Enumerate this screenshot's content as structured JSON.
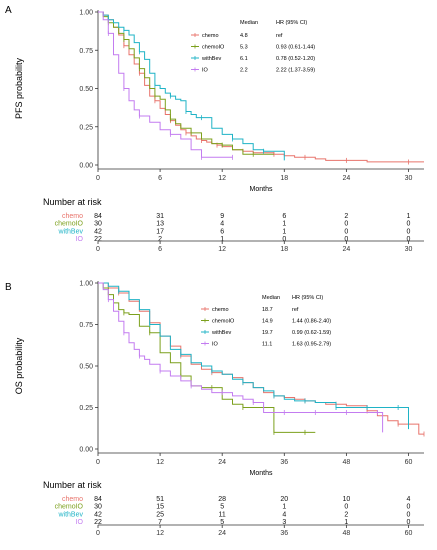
{
  "colors": {
    "chemo": "#e8736b",
    "chemoIO": "#7ca01d",
    "withBev": "#1fb3c6",
    "IO": "#c37cf0",
    "axis": "#333333"
  },
  "risk_title": "Number at risk",
  "chart_data": [
    {
      "type": "line",
      "panel_label": "A",
      "title": "",
      "xlabel": "Months",
      "ylabel": "PFS probability",
      "xlim": [
        0,
        31.5
      ],
      "ylim": [
        0,
        1
      ],
      "x_ticks": [
        0,
        6,
        12,
        18,
        24,
        30
      ],
      "y_ticks": [
        0.0,
        0.25,
        0.5,
        0.75,
        1.0
      ],
      "y_tick_labels": [
        "0.00",
        "0.25",
        "0.50",
        "0.75",
        "1.00"
      ],
      "legend": {
        "placement": "top-right",
        "header_median": "Median",
        "header_hr": "HR (95% CI)",
        "rows": [
          {
            "name": "chemo",
            "median": "4.8",
            "hr": "ref"
          },
          {
            "name": "chemoIO",
            "median": "5.3",
            "hr": "0.93 (0.61-1.44)"
          },
          {
            "name": "withBev",
            "median": "6.1",
            "hr": "0.78 (0.52-1.20)"
          },
          {
            "name": "IO",
            "median": "2.2",
            "hr": "2.22 (1.37-3.59)"
          }
        ]
      },
      "series": [
        {
          "name": "chemo",
          "color": "#e8736b",
          "x": [
            0,
            0.5,
            1,
            1.5,
            2,
            2.5,
            3,
            3.5,
            4,
            4.5,
            5,
            5.5,
            6,
            6.5,
            7,
            7.5,
            8,
            8.5,
            9,
            9.5,
            10,
            10.5,
            11,
            11.5,
            12,
            13,
            14,
            15,
            16,
            17,
            18,
            19,
            20,
            21,
            22,
            24,
            26,
            28,
            30,
            31.5
          ],
          "y": [
            1.0,
            0.98,
            0.95,
            0.9,
            0.85,
            0.78,
            0.72,
            0.66,
            0.6,
            0.52,
            0.45,
            0.42,
            0.37,
            0.33,
            0.29,
            0.26,
            0.23,
            0.21,
            0.19,
            0.17,
            0.16,
            0.15,
            0.14,
            0.13,
            0.12,
            0.1,
            0.09,
            0.08,
            0.08,
            0.07,
            0.06,
            0.05,
            0.05,
            0.04,
            0.03,
            0.03,
            0.02,
            0.02,
            0.02,
            0.02
          ]
        },
        {
          "name": "chemoIO",
          "color": "#7ca01d",
          "x": [
            0,
            0.5,
            1,
            1.5,
            2,
            2.5,
            3,
            3.5,
            4,
            4.5,
            5,
            5.5,
            6,
            6.5,
            7,
            7.5,
            8,
            9,
            10,
            11,
            12,
            13,
            14,
            15,
            16,
            17
          ],
          "y": [
            1.0,
            0.97,
            0.93,
            0.9,
            0.86,
            0.82,
            0.76,
            0.7,
            0.63,
            0.57,
            0.5,
            0.45,
            0.43,
            0.36,
            0.3,
            0.27,
            0.24,
            0.21,
            0.17,
            0.14,
            0.13,
            0.1,
            0.07,
            0.07,
            0.07,
            0.07
          ]
        },
        {
          "name": "withBev",
          "color": "#1fb3c6",
          "x": [
            0,
            0.5,
            1,
            1.5,
            2,
            2.5,
            3,
            3.5,
            4,
            4.5,
            5,
            5.5,
            6,
            6.5,
            7,
            7.5,
            8,
            8.5,
            9,
            9.5,
            10,
            11,
            12,
            13,
            14,
            15,
            16,
            17,
            18
          ],
          "y": [
            1.0,
            0.98,
            0.95,
            0.93,
            0.9,
            0.88,
            0.85,
            0.8,
            0.74,
            0.69,
            0.6,
            0.52,
            0.5,
            0.47,
            0.45,
            0.43,
            0.42,
            0.35,
            0.33,
            0.31,
            0.31,
            0.24,
            0.2,
            0.17,
            0.14,
            0.1,
            0.09,
            0.09,
            0.03
          ]
        },
        {
          "name": "IO",
          "color": "#c37cf0",
          "x": [
            0,
            0.5,
            1,
            1.5,
            2,
            2.5,
            3,
            3.5,
            4,
            5,
            6,
            7,
            8,
            9,
            10,
            11,
            12,
            13
          ],
          "y": [
            1.0,
            0.95,
            0.86,
            0.72,
            0.6,
            0.5,
            0.42,
            0.36,
            0.32,
            0.28,
            0.23,
            0.2,
            0.17,
            0.1,
            0.05,
            0.05,
            0.05,
            0.05
          ]
        }
      ],
      "risk_table": {
        "times": [
          0,
          6,
          12,
          18,
          24,
          30
        ],
        "rows": [
          {
            "name": "chemo",
            "counts": [
              84,
              31,
              9,
              6,
              2,
              1
            ]
          },
          {
            "name": "chemoIO",
            "counts": [
              30,
              13,
              4,
              1,
              0,
              0
            ]
          },
          {
            "name": "withBev",
            "counts": [
              42,
              17,
              6,
              1,
              0,
              0
            ]
          },
          {
            "name": "IO",
            "counts": [
              22,
              2,
              1,
              0,
              0,
              0
            ]
          }
        ]
      }
    },
    {
      "type": "line",
      "panel_label": "B",
      "title": "",
      "xlabel": "Months",
      "ylabel": "OS probability",
      "xlim": [
        0,
        63
      ],
      "ylim": [
        0,
        1
      ],
      "x_ticks": [
        0,
        12,
        24,
        36,
        48,
        60
      ],
      "y_ticks": [
        0.0,
        0.25,
        0.5,
        0.75,
        1.0
      ],
      "y_tick_labels": [
        "0.00",
        "0.25",
        "0.50",
        "0.75",
        "1.00"
      ],
      "legend": {
        "placement": "top-right",
        "header_median": "Median",
        "header_hr": "HR (95% CI)",
        "rows": [
          {
            "name": "chemo",
            "median": "18.7",
            "hr": "ref"
          },
          {
            "name": "chemoIO",
            "median": "14.9",
            "hr": "1.44 (0.86-2.40)"
          },
          {
            "name": "withBev",
            "median": "19.7",
            "hr": "0.99 (0.62-1.59)"
          },
          {
            "name": "IO",
            "median": "11.1",
            "hr": "1.63 (0.95-2.79)"
          }
        ]
      },
      "series": [
        {
          "name": "chemo",
          "color": "#e8736b",
          "x": [
            0,
            2,
            4,
            6,
            8,
            10,
            12,
            14,
            16,
            18,
            20,
            22,
            24,
            26,
            28,
            30,
            32,
            34,
            36,
            38,
            40,
            42,
            44,
            46,
            48,
            50,
            52,
            54,
            56,
            58,
            60,
            62,
            63
          ],
          "y": [
            1.0,
            0.97,
            0.94,
            0.89,
            0.83,
            0.76,
            0.68,
            0.62,
            0.56,
            0.51,
            0.48,
            0.46,
            0.45,
            0.43,
            0.4,
            0.37,
            0.34,
            0.32,
            0.31,
            0.3,
            0.29,
            0.28,
            0.27,
            0.27,
            0.26,
            0.26,
            0.23,
            0.2,
            0.17,
            0.15,
            0.15,
            0.09,
            0.09
          ]
        },
        {
          "name": "chemoIO",
          "color": "#7ca01d",
          "x": [
            0,
            1,
            2,
            3,
            4,
            5,
            6,
            8,
            10,
            12,
            14,
            16,
            18,
            20,
            22,
            24,
            26,
            28,
            30,
            32,
            34,
            36,
            38,
            40,
            42
          ],
          "y": [
            1.0,
            0.97,
            0.93,
            0.88,
            0.84,
            0.82,
            0.81,
            0.74,
            0.7,
            0.58,
            0.52,
            0.44,
            0.38,
            0.37,
            0.37,
            0.3,
            0.27,
            0.25,
            0.25,
            0.25,
            0.1,
            0.1,
            0.1,
            0.1,
            0.1
          ]
        },
        {
          "name": "withBev",
          "color": "#1fb3c6",
          "x": [
            0,
            2,
            4,
            6,
            8,
            10,
            12,
            14,
            16,
            18,
            20,
            22,
            24,
            26,
            28,
            30,
            32,
            34,
            36,
            38,
            40,
            42,
            44,
            46,
            48,
            50,
            52,
            54,
            56,
            58,
            60
          ],
          "y": [
            1.0,
            0.98,
            0.95,
            0.9,
            0.84,
            0.75,
            0.68,
            0.6,
            0.57,
            0.52,
            0.5,
            0.47,
            0.45,
            0.42,
            0.4,
            0.37,
            0.35,
            0.32,
            0.3,
            0.29,
            0.29,
            0.28,
            0.28,
            0.25,
            0.25,
            0.25,
            0.25,
            0.25,
            0.25,
            0.25,
            0.12
          ]
        },
        {
          "name": "IO",
          "color": "#c37cf0",
          "x": [
            0,
            1,
            2,
            3,
            4,
            5,
            6,
            7,
            8,
            9,
            10,
            12,
            14,
            16,
            18,
            20,
            22,
            24,
            26,
            28,
            30,
            32,
            34,
            36,
            38,
            40,
            42,
            44,
            46,
            48,
            50,
            52,
            54,
            55
          ],
          "y": [
            1.0,
            0.96,
            0.9,
            0.83,
            0.77,
            0.7,
            0.64,
            0.6,
            0.56,
            0.54,
            0.51,
            0.47,
            0.44,
            0.41,
            0.38,
            0.36,
            0.34,
            0.34,
            0.32,
            0.3,
            0.28,
            0.22,
            0.22,
            0.22,
            0.22,
            0.22,
            0.22,
            0.22,
            0.22,
            0.22,
            0.22,
            0.22,
            0.22,
            0.1
          ]
        }
      ],
      "risk_table": {
        "times": [
          0,
          12,
          24,
          36,
          48,
          60
        ],
        "rows": [
          {
            "name": "chemo",
            "counts": [
              84,
              51,
              28,
              20,
              10,
              4
            ]
          },
          {
            "name": "chemoIO",
            "counts": [
              30,
              15,
              5,
              1,
              0,
              0
            ]
          },
          {
            "name": "withBev",
            "counts": [
              42,
              25,
              11,
              4,
              2,
              0
            ]
          },
          {
            "name": "IO",
            "counts": [
              22,
              7,
              5,
              3,
              1,
              0
            ]
          }
        ]
      }
    }
  ]
}
